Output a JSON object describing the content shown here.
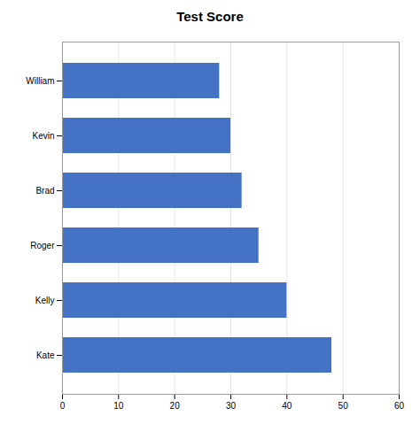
{
  "chart_data": {
    "type": "bar",
    "orientation": "horizontal",
    "title": "Test Score",
    "categories": [
      "William",
      "Kevin",
      "Brad",
      "Roger",
      "Kelly",
      "Kate"
    ],
    "values": [
      28,
      30,
      32,
      35,
      40,
      48
    ],
    "color": "#4472C4",
    "xlim": [
      0,
      60
    ],
    "xticks": [
      0,
      10,
      20,
      30,
      40,
      50,
      60
    ],
    "grid": true
  }
}
